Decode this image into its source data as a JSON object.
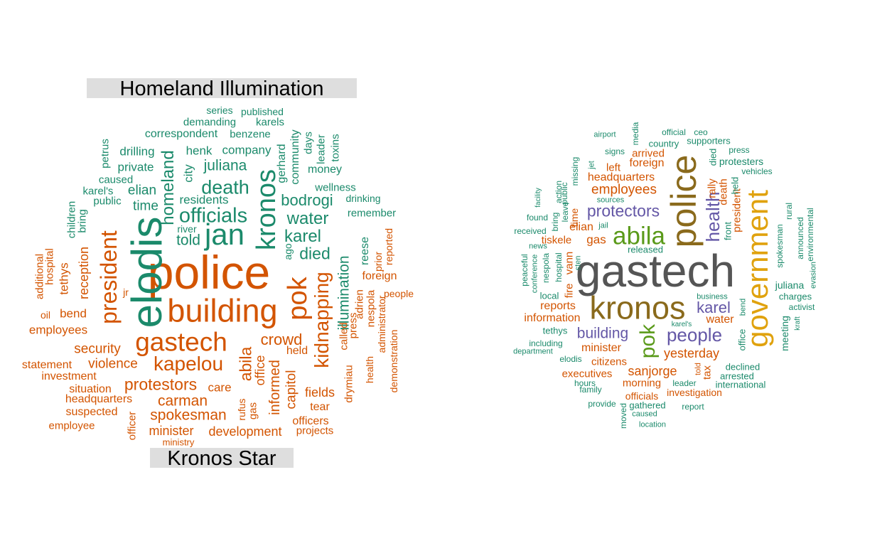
{
  "colors": {
    "green": "#1b8a6b",
    "orange": "#d35400",
    "purple": "#6457a6",
    "lime": "#5a9a1a",
    "gold": "#e0a20e",
    "brown": "#8a6a1c",
    "gray": "#555555",
    "label_bg": "#dedede"
  },
  "left_cloud": {
    "top_label": "Homeland Illumination",
    "bottom_label": "Kronos Star",
    "words": [
      {
        "text": "police",
        "color": "orange"
      },
      {
        "text": "building",
        "color": "orange"
      },
      {
        "text": "elodis",
        "color": "green"
      },
      {
        "text": "jan",
        "color": "green"
      },
      {
        "text": "gastech",
        "color": "orange"
      },
      {
        "text": "president",
        "color": "orange"
      },
      {
        "text": "pok",
        "color": "orange"
      },
      {
        "text": "kronos",
        "color": "green"
      },
      {
        "text": "kapelou",
        "color": "orange"
      },
      {
        "text": "kidnapping",
        "color": "orange"
      },
      {
        "text": "death",
        "color": "green"
      },
      {
        "text": "officials",
        "color": "green"
      },
      {
        "text": "homeland",
        "color": "green"
      },
      {
        "text": "abila",
        "color": "orange"
      },
      {
        "text": "protestors",
        "color": "orange"
      },
      {
        "text": "carman",
        "color": "orange"
      },
      {
        "text": "crowd",
        "color": "orange"
      },
      {
        "text": "spokesman",
        "color": "orange"
      },
      {
        "text": "illumination",
        "color": "green"
      },
      {
        "text": "karel",
        "color": "green"
      },
      {
        "text": "water",
        "color": "green"
      },
      {
        "text": "died",
        "color": "green"
      },
      {
        "text": "juliana",
        "color": "green"
      },
      {
        "text": "bodrogi",
        "color": "green"
      },
      {
        "text": "told",
        "color": "green"
      },
      {
        "text": "informed",
        "color": "orange"
      },
      {
        "text": "reception",
        "color": "orange"
      },
      {
        "text": "capitol",
        "color": "orange"
      },
      {
        "text": "security",
        "color": "orange"
      },
      {
        "text": "violence",
        "color": "orange"
      },
      {
        "text": "development",
        "color": "orange"
      },
      {
        "text": "minister",
        "color": "orange"
      },
      {
        "text": "fields",
        "color": "orange"
      },
      {
        "text": "residents",
        "color": "green"
      },
      {
        "text": "city",
        "color": "green"
      },
      {
        "text": "time",
        "color": "green"
      },
      {
        "text": "elian",
        "color": "green"
      },
      {
        "text": "company",
        "color": "green"
      },
      {
        "text": "henk",
        "color": "green"
      },
      {
        "text": "private",
        "color": "green"
      },
      {
        "text": "drilling",
        "color": "green"
      },
      {
        "text": "correspondent",
        "color": "green"
      },
      {
        "text": "benzene",
        "color": "green"
      },
      {
        "text": "demanding",
        "color": "green"
      },
      {
        "text": "karels",
        "color": "green"
      },
      {
        "text": "series",
        "color": "green"
      },
      {
        "text": "published",
        "color": "green"
      },
      {
        "text": "gerhard",
        "color": "green"
      },
      {
        "text": "community",
        "color": "green"
      },
      {
        "text": "days",
        "color": "green"
      },
      {
        "text": "leader",
        "color": "green"
      },
      {
        "text": "toxins",
        "color": "green"
      },
      {
        "text": "money",
        "color": "green"
      },
      {
        "text": "wellness",
        "color": "green"
      },
      {
        "text": "drinking",
        "color": "green"
      },
      {
        "text": "remember",
        "color": "green"
      },
      {
        "text": "reese",
        "color": "green"
      },
      {
        "text": "prior",
        "color": "orange"
      },
      {
        "text": "reported",
        "color": "orange"
      },
      {
        "text": "foreign",
        "color": "orange"
      },
      {
        "text": "people",
        "color": "orange"
      },
      {
        "text": "adrien",
        "color": "orange"
      },
      {
        "text": "nespola",
        "color": "orange"
      },
      {
        "text": "press",
        "color": "orange"
      },
      {
        "text": "called",
        "color": "orange"
      },
      {
        "text": "administrator",
        "color": "orange"
      },
      {
        "text": "demonstration",
        "color": "orange"
      },
      {
        "text": "health",
        "color": "orange"
      },
      {
        "text": "drymiau",
        "color": "orange"
      },
      {
        "text": "held",
        "color": "orange"
      },
      {
        "text": "office",
        "color": "orange"
      },
      {
        "text": "tear",
        "color": "orange"
      },
      {
        "text": "officers",
        "color": "orange"
      },
      {
        "text": "projects",
        "color": "orange"
      },
      {
        "text": "care",
        "color": "orange"
      },
      {
        "text": "rufus",
        "color": "orange"
      },
      {
        "text": "gas",
        "color": "orange"
      },
      {
        "text": "ministry",
        "color": "orange"
      },
      {
        "text": "officer",
        "color": "orange"
      },
      {
        "text": "employee",
        "color": "orange"
      },
      {
        "text": "suspected",
        "color": "orange"
      },
      {
        "text": "headquarters",
        "color": "orange"
      },
      {
        "text": "situation",
        "color": "orange"
      },
      {
        "text": "investment",
        "color": "orange"
      },
      {
        "text": "statement",
        "color": "orange"
      },
      {
        "text": "employees",
        "color": "orange"
      },
      {
        "text": "bend",
        "color": "orange"
      },
      {
        "text": "oil",
        "color": "orange"
      },
      {
        "text": "jr",
        "color": "orange"
      },
      {
        "text": "tethys",
        "color": "orange"
      },
      {
        "text": "hospital",
        "color": "orange"
      },
      {
        "text": "additional",
        "color": "orange"
      },
      {
        "text": "bring",
        "color": "green"
      },
      {
        "text": "children",
        "color": "green"
      },
      {
        "text": "public",
        "color": "green"
      },
      {
        "text": "karel's",
        "color": "green"
      },
      {
        "text": "caused",
        "color": "green"
      },
      {
        "text": "petrus",
        "color": "green"
      },
      {
        "text": "river",
        "color": "green"
      },
      {
        "text": "ago",
        "color": "green"
      }
    ]
  },
  "right_cloud": {
    "words": [
      {
        "text": "gastech",
        "color": "gray"
      },
      {
        "text": "kronos",
        "color": "brown"
      },
      {
        "text": "police",
        "color": "brown"
      },
      {
        "text": "government",
        "color": "gold"
      },
      {
        "text": "abila",
        "color": "lime"
      },
      {
        "text": "pok",
        "color": "lime"
      },
      {
        "text": "health",
        "color": "purple"
      },
      {
        "text": "people",
        "color": "purple"
      },
      {
        "text": "protectors",
        "color": "purple"
      },
      {
        "text": "building",
        "color": "purple"
      },
      {
        "text": "karel",
        "color": "purple"
      },
      {
        "text": "employees",
        "color": "orange"
      },
      {
        "text": "headquarters",
        "color": "orange"
      },
      {
        "text": "yesterday",
        "color": "orange"
      },
      {
        "text": "sanjorge",
        "color": "orange"
      },
      {
        "text": "minister",
        "color": "orange"
      },
      {
        "text": "executives",
        "color": "orange"
      },
      {
        "text": "citizens",
        "color": "orange"
      },
      {
        "text": "information",
        "color": "orange"
      },
      {
        "text": "reports",
        "color": "orange"
      },
      {
        "text": "investigation",
        "color": "orange"
      },
      {
        "text": "morning",
        "color": "orange"
      },
      {
        "text": "officials",
        "color": "orange"
      },
      {
        "text": "tiskele",
        "color": "orange"
      },
      {
        "text": "elian",
        "color": "orange"
      },
      {
        "text": "gas",
        "color": "orange"
      },
      {
        "text": "water",
        "color": "orange"
      },
      {
        "text": "foreign",
        "color": "orange"
      },
      {
        "text": "arrived",
        "color": "orange"
      },
      {
        "text": "left",
        "color": "orange"
      },
      {
        "text": "president",
        "color": "orange"
      },
      {
        "text": "death",
        "color": "orange"
      },
      {
        "text": "rally",
        "color": "orange"
      },
      {
        "text": "tax",
        "color": "orange"
      },
      {
        "text": "fire",
        "color": "orange"
      },
      {
        "text": "vann",
        "color": "orange"
      },
      {
        "text": "time",
        "color": "orange"
      },
      {
        "text": "told",
        "color": "orange"
      },
      {
        "text": "released",
        "color": "green"
      },
      {
        "text": "front",
        "color": "green"
      },
      {
        "text": "held",
        "color": "green"
      },
      {
        "text": "died",
        "color": "green"
      },
      {
        "text": "protesters",
        "color": "green"
      },
      {
        "text": "vehicles",
        "color": "green"
      },
      {
        "text": "press",
        "color": "green"
      },
      {
        "text": "supporters",
        "color": "green"
      },
      {
        "text": "ceo",
        "color": "green"
      },
      {
        "text": "official",
        "color": "green"
      },
      {
        "text": "country",
        "color": "green"
      },
      {
        "text": "media",
        "color": "green"
      },
      {
        "text": "signs",
        "color": "green"
      },
      {
        "text": "airport",
        "color": "green"
      },
      {
        "text": "jet",
        "color": "green"
      },
      {
        "text": "missing",
        "color": "green"
      },
      {
        "text": "sources",
        "color": "green"
      },
      {
        "text": "jail",
        "color": "green"
      },
      {
        "text": "action",
        "color": "green"
      },
      {
        "text": "public",
        "color": "green"
      },
      {
        "text": "leave",
        "color": "green"
      },
      {
        "text": "bring",
        "color": "green"
      },
      {
        "text": "facility",
        "color": "green"
      },
      {
        "text": "found",
        "color": "green"
      },
      {
        "text": "received",
        "color": "green"
      },
      {
        "text": "news",
        "color": "green"
      },
      {
        "text": "peaceful",
        "color": "green"
      },
      {
        "text": "conference",
        "color": "green"
      },
      {
        "text": "nespola",
        "color": "green"
      },
      {
        "text": "hospital",
        "color": "green"
      },
      {
        "text": "sten",
        "color": "green"
      },
      {
        "text": "local",
        "color": "green"
      },
      {
        "text": "tethys",
        "color": "green"
      },
      {
        "text": "including",
        "color": "green"
      },
      {
        "text": "department",
        "color": "green"
      },
      {
        "text": "elodis",
        "color": "green"
      },
      {
        "text": "hours",
        "color": "green"
      },
      {
        "text": "family",
        "color": "green"
      },
      {
        "text": "leader",
        "color": "green"
      },
      {
        "text": "provide",
        "color": "green"
      },
      {
        "text": "moved",
        "color": "green"
      },
      {
        "text": "caused",
        "color": "green"
      },
      {
        "text": "gathered",
        "color": "green"
      },
      {
        "text": "location",
        "color": "green"
      },
      {
        "text": "report",
        "color": "green"
      },
      {
        "text": "international",
        "color": "green"
      },
      {
        "text": "arrested",
        "color": "green"
      },
      {
        "text": "declined",
        "color": "green"
      },
      {
        "text": "office",
        "color": "green"
      },
      {
        "text": "karel's",
        "color": "green"
      },
      {
        "text": "business",
        "color": "green"
      },
      {
        "text": "bend",
        "color": "green"
      },
      {
        "text": "meeting",
        "color": "green"
      },
      {
        "text": "kraft",
        "color": "green"
      },
      {
        "text": "activist",
        "color": "green"
      },
      {
        "text": "charges",
        "color": "green"
      },
      {
        "text": "juliana",
        "color": "green"
      },
      {
        "text": "spokesman",
        "color": "green"
      },
      {
        "text": "rural",
        "color": "green"
      },
      {
        "text": "announced",
        "color": "green"
      },
      {
        "text": "environmental",
        "color": "green"
      },
      {
        "text": "evasion",
        "color": "green"
      }
    ]
  }
}
